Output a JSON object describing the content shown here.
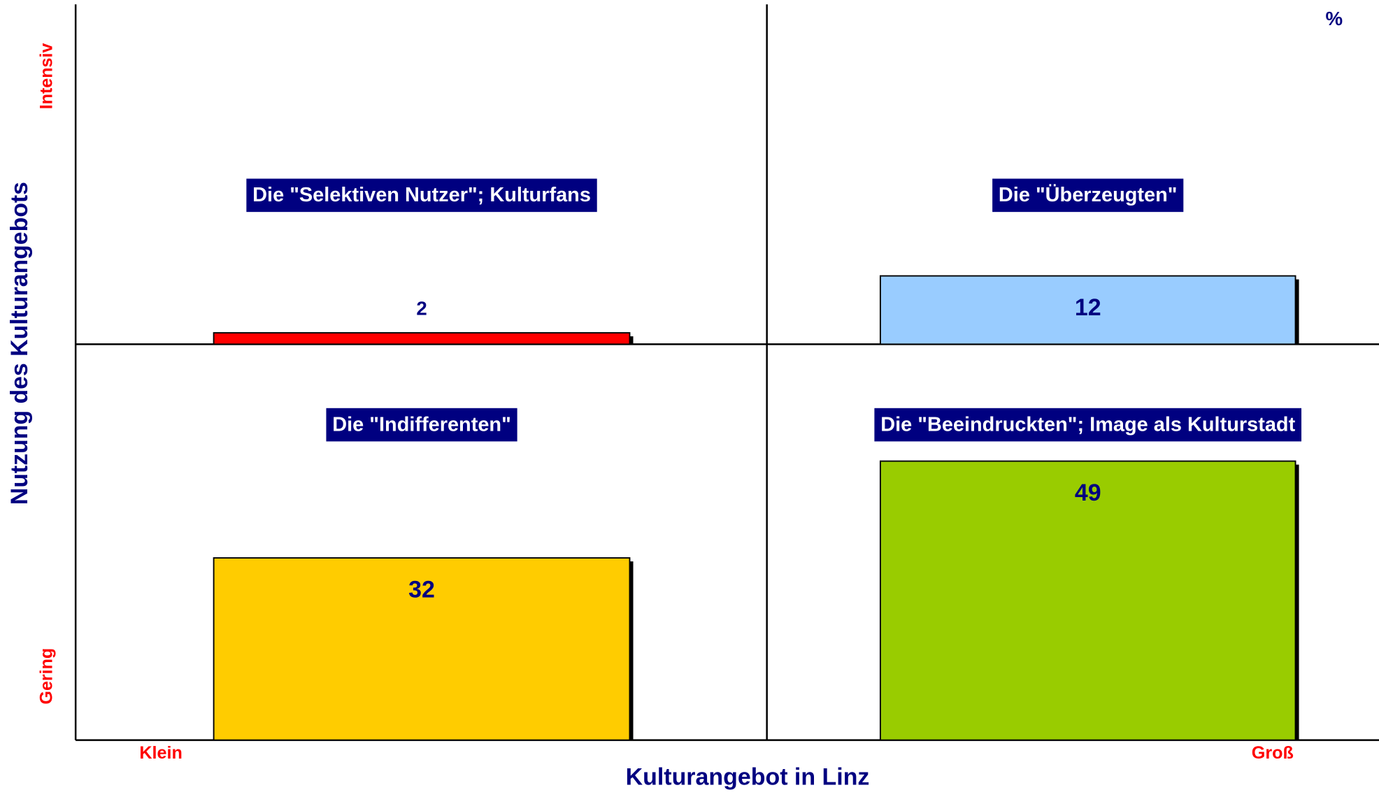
{
  "chart_data": {
    "type": "quadrant",
    "x_label": "Kulturangebot in Linz",
    "y_label": "Nutzung des Kulturangebots",
    "x_low": "Klein",
    "x_high": "Groß",
    "y_low": "Gering",
    "y_high": "Intensiv",
    "unit": "%",
    "categories": [
      "Die \"Selektiven Nutzer\"; Kulturfans",
      "Die \"Überzeugten\"",
      "Die \"Indifferenten\"",
      "Die \"Beeindruckten\"; Image als Kulturstadt"
    ],
    "values": [
      2,
      12,
      32,
      49
    ],
    "colors": [
      "#ff0000",
      "#99ccff",
      "#ffcc00",
      "#99cc00"
    ]
  }
}
